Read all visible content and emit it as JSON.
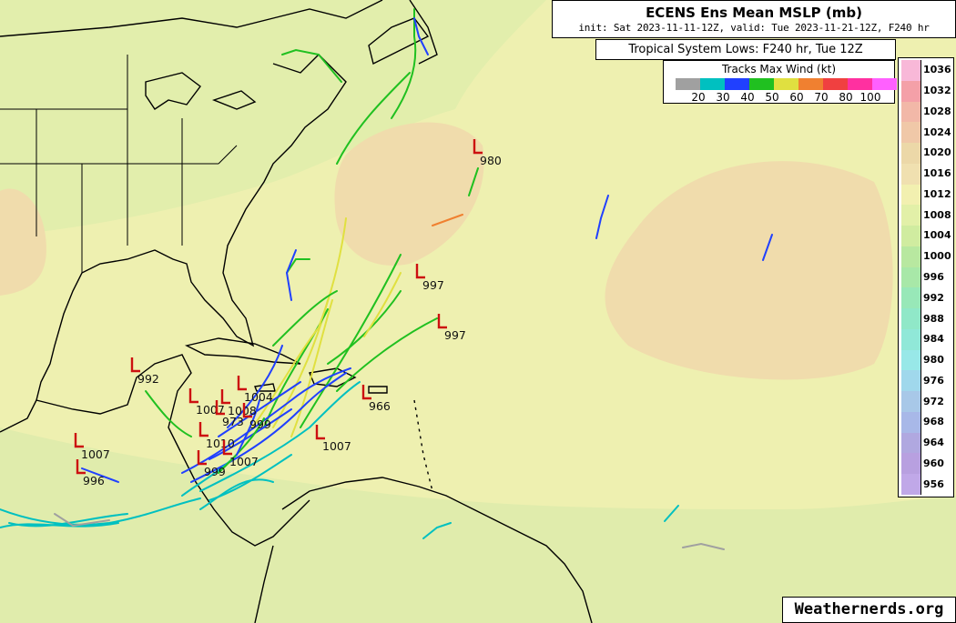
{
  "header": {
    "title": "ECENS Ens Mean MSLP (mb)",
    "subtitle": "init: Sat 2023-11-11-12Z, valid: Tue 2023-11-21-12Z, F240 hr"
  },
  "lows_label": "Tropical System Lows: F240 hr, Tue 12Z",
  "track_legend": {
    "title": "Tracks Max Wind (kt)",
    "colors": [
      "#a0a0a0",
      "#00c0c0",
      "#2040ff",
      "#20c020",
      "#e0e040",
      "#f08030",
      "#f04040",
      "#ff30a0",
      "#ff60ff"
    ],
    "labels": [
      "20",
      "30",
      "40",
      "50",
      "60",
      "70",
      "80",
      "100"
    ]
  },
  "colorbar": {
    "levels": [
      "1036",
      "1032",
      "1028",
      "1024",
      "1020",
      "1016",
      "1012",
      "1008",
      "1004",
      "1000",
      "996",
      "992",
      "988",
      "984",
      "980",
      "976",
      "972",
      "968",
      "964",
      "960",
      "956"
    ],
    "colors": [
      "#f8b8d8",
      "#f4a0a8",
      "#f2b8a8",
      "#f0c8a8",
      "#ecd8a8",
      "#f0e0b0",
      "#f2f0b0",
      "#e2f0a8",
      "#d0eca0",
      "#b8e8a0",
      "#a8e8a8",
      "#98e8b8",
      "#90e8c8",
      "#90e8d8",
      "#98e8e8",
      "#a0d8ec",
      "#a8c8e8",
      "#a8b8e8",
      "#b0a8e0",
      "#b8a0e0",
      "#c0a8e8"
    ]
  },
  "credit": "Weathernerds.org",
  "lows": [
    {
      "label": "980"
    },
    {
      "label": "997"
    },
    {
      "label": "997"
    },
    {
      "label": "966"
    },
    {
      "label": "992"
    },
    {
      "label": "1007"
    },
    {
      "label": "1007"
    },
    {
      "label": "996"
    },
    {
      "label": "1007"
    },
    {
      "label": "973"
    },
    {
      "label": "1004"
    },
    {
      "label": "1010"
    },
    {
      "label": "1008"
    },
    {
      "label": "999"
    },
    {
      "label": "1007"
    },
    {
      "label": "999"
    }
  ]
}
